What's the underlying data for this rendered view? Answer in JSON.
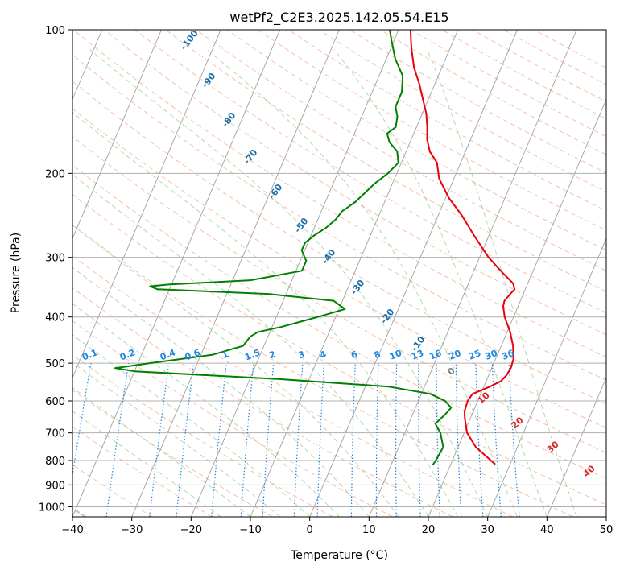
{
  "chart_data": {
    "type": "line",
    "subtype": "skew-t log-p diagram",
    "title": "wetPf2_C2E3.2025.142.05.54.E15",
    "xlabel": "Temperature (°C)",
    "ylabel": "Pressure (hPa)",
    "xlim": [
      -40,
      50
    ],
    "ylim": [
      1050,
      100
    ],
    "yscale": "log",
    "x_ticks": [
      -40,
      -30,
      -20,
      -10,
      0,
      10,
      20,
      30,
      40,
      50
    ],
    "y_ticks": [
      100,
      200,
      300,
      400,
      500,
      600,
      700,
      800,
      900,
      1000
    ],
    "grid": true,
    "colors": {
      "temperature": "#e8000b",
      "dewpoint": "#008000",
      "isotherm": "#a0a0a0",
      "dry_adiabat": "#f4a582",
      "moist_adiabat": "#9fcf9f",
      "mixing_ratio": "#1e88e5",
      "isotherm_label": "#1f6fa8",
      "dry_adiabat_label": "#d62728",
      "zero_label": "#7f7f7f",
      "freezing_arc": "#d2b48c"
    },
    "series": [
      {
        "key": "temperature",
        "points": [
          [
            27.5,
            815
          ],
          [
            26.5,
            800
          ],
          [
            23,
            750
          ],
          [
            20.5,
            700
          ],
          [
            19.0,
            650
          ],
          [
            18.5,
            630
          ],
          [
            18.3,
            600
          ],
          [
            18.6,
            580
          ],
          [
            21,
            560
          ],
          [
            22.5,
            545
          ],
          [
            23.0,
            530
          ],
          [
            23.2,
            510
          ],
          [
            23.0,
            490
          ],
          [
            22.0,
            460
          ],
          [
            20.5,
            430
          ],
          [
            18.5,
            400
          ],
          [
            17.5,
            380
          ],
          [
            17.3,
            370
          ],
          [
            17.7,
            360
          ],
          [
            18.2,
            350
          ],
          [
            17.5,
            340
          ],
          [
            14.5,
            320
          ],
          [
            11.5,
            300
          ],
          [
            7.5,
            270
          ],
          [
            4.0,
            245
          ],
          [
            0.5,
            225
          ],
          [
            -2.5,
            205
          ],
          [
            -4.0,
            190
          ],
          [
            -6.0,
            180
          ],
          [
            -7.3,
            170
          ],
          [
            -8.2,
            160
          ],
          [
            -9.3,
            150
          ],
          [
            -10.9,
            140
          ],
          [
            -12.6,
            130
          ],
          [
            -14.7,
            120
          ],
          [
            -16.4,
            110
          ],
          [
            -17.2,
            105
          ],
          [
            -18.0,
            100
          ]
        ]
      },
      {
        "key": "dewpoint",
        "points": [
          [
            17.0,
            818
          ],
          [
            17.2,
            800
          ],
          [
            17.5,
            750
          ],
          [
            16.0,
            700
          ],
          [
            14.5,
            670
          ],
          [
            15.5,
            640
          ],
          [
            16.0,
            620
          ],
          [
            14.5,
            600
          ],
          [
            11.5,
            580
          ],
          [
            4.0,
            560
          ],
          [
            -15.0,
            540
          ],
          [
            -40.0,
            520
          ],
          [
            -43.5,
            512
          ],
          [
            -38.0,
            500
          ],
          [
            -28.0,
            480
          ],
          [
            -23.5,
            460
          ],
          [
            -23.0,
            440
          ],
          [
            -22.0,
            430
          ],
          [
            -18.5,
            420
          ],
          [
            -13.0,
            400
          ],
          [
            -9.0,
            385
          ],
          [
            -11.5,
            370
          ],
          [
            -23.0,
            358
          ],
          [
            -42.0,
            350
          ],
          [
            -43.5,
            345
          ],
          [
            -40.5,
            342
          ],
          [
            -27.0,
            335
          ],
          [
            -19.0,
            320
          ],
          [
            -19.0,
            305
          ],
          [
            -20.5,
            290
          ],
          [
            -20.5,
            280
          ],
          [
            -19.5,
            270
          ],
          [
            -18.0,
            260
          ],
          [
            -17.0,
            250
          ],
          [
            -16.5,
            240
          ],
          [
            -15.0,
            230
          ],
          [
            -14.0,
            220
          ],
          [
            -13.0,
            210
          ],
          [
            -11.5,
            200
          ],
          [
            -10.5,
            190
          ],
          [
            -11.5,
            180
          ],
          [
            -13.5,
            172
          ],
          [
            -14.5,
            165
          ],
          [
            -13.5,
            160
          ],
          [
            -14.0,
            152
          ],
          [
            -15.0,
            145
          ],
          [
            -15.0,
            135
          ],
          [
            -16.0,
            125
          ],
          [
            -18.5,
            115
          ],
          [
            -20.5,
            105
          ],
          [
            -21.5,
            100
          ]
        ]
      }
    ],
    "isotherm_labels": [
      "-100",
      "-90",
      "-80",
      "-70",
      "-60",
      "-50",
      "-40",
      "-30",
      "-20",
      "-10"
    ],
    "dry_adiabat_labels": [
      "0",
      "10",
      "20",
      "30",
      "40"
    ],
    "mixing_ratio_labels": [
      "0.1",
      "0.2",
      "0.4",
      "0.6",
      "1",
      "1.5",
      "2",
      "3",
      "4",
      "6",
      "8",
      "10",
      "13",
      "16",
      "20",
      "25",
      "30",
      "36"
    ]
  }
}
